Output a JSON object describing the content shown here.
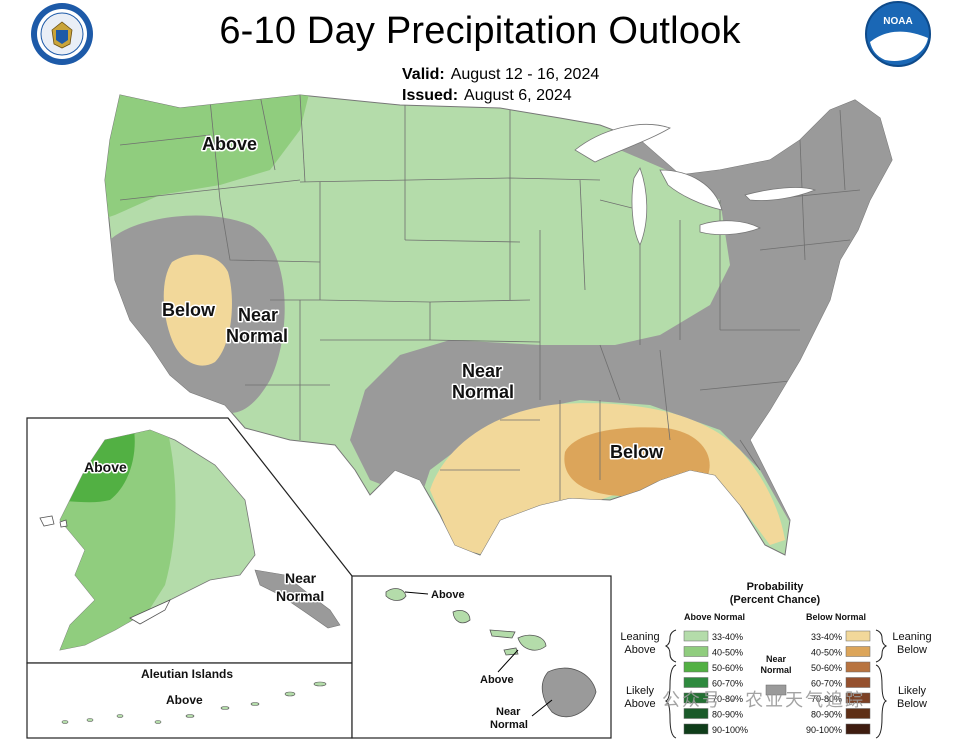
{
  "header": {
    "title": "6-10 Day Precipitation Outlook",
    "valid_label": "Valid:",
    "valid_value": "August 12 - 16, 2024",
    "issued_label": "Issued:",
    "issued_value": "August 6, 2024"
  },
  "logos": {
    "left": "department-of-commerce-seal",
    "right": "NOAA"
  },
  "map_labels": {
    "northwest": "Above",
    "california": "Below",
    "great_basin": [
      "Near",
      "Normal"
    ],
    "southern_plains": [
      "Near",
      "Normal"
    ],
    "gulf_coast": "Below",
    "alaska_west": "Above",
    "alaska_southeast": [
      "Near",
      "Normal"
    ],
    "aleutians_title": "Aleutian Islands",
    "aleutians": "Above",
    "hawaii_north": "Above",
    "hawaii_mid": "Above",
    "hawaii_south": [
      "Near",
      "Normal"
    ]
  },
  "legend": {
    "title": [
      "Probability",
      "(Percent Chance)"
    ],
    "above_header": "Above Normal",
    "below_header": "Below Normal",
    "above_bins": [
      "33-40%",
      "40-50%",
      "50-60%",
      "60-70%",
      "70-80%",
      "80-90%",
      "90-100%"
    ],
    "below_bins": [
      "33-40%",
      "40-50%",
      "50-60%",
      "60-70%",
      "70-80%",
      "80-90%",
      "90-100%"
    ],
    "near_normal": [
      "Near",
      "Normal"
    ],
    "leaning_above": [
      "Leaning",
      "Above"
    ],
    "likely_above": [
      "Likely",
      "Above"
    ],
    "leaning_below": [
      "Leaning",
      "Below"
    ],
    "likely_below": [
      "Likely",
      "Below"
    ]
  },
  "colors": {
    "above": [
      "#b4dcaa",
      "#90cd7e",
      "#52b043",
      "#2e8a3e",
      "#237033",
      "#1a5a29",
      "#0f3d1a"
    ],
    "below": [
      "#f2d89a",
      "#dca55a",
      "#b87440",
      "#95502e",
      "#7c4125",
      "#5e2f16",
      "#3f1d10"
    ],
    "near_normal": "#9a9a9a",
    "background": "#ffffff",
    "lakes": "#ffffff"
  },
  "watermark": "公众号 · 农业天气追踪"
}
